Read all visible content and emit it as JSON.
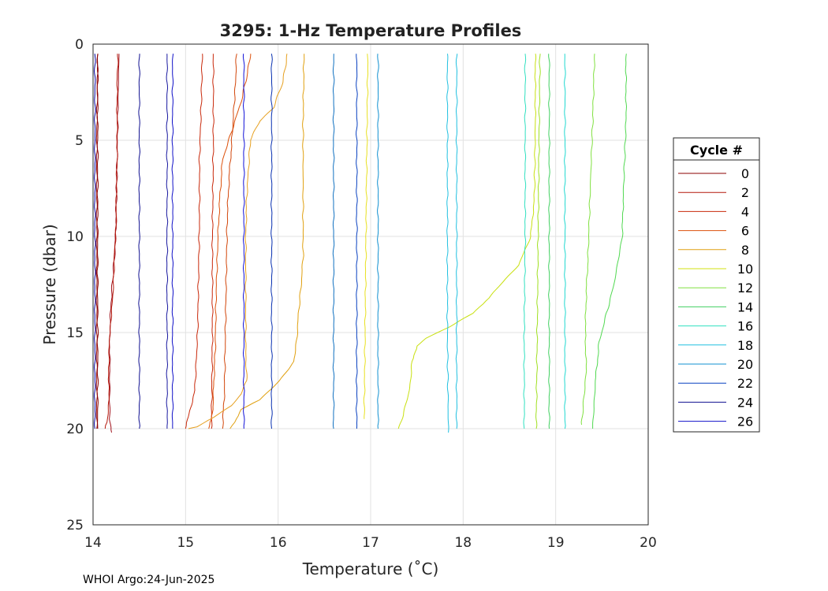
{
  "chart_data": {
    "type": "line",
    "title": "3295: 1-Hz Temperature Profiles",
    "xlabel": "Temperature (˚C)",
    "ylabel": "Pressure (dbar)",
    "xlim": [
      14,
      20
    ],
    "ylim": [
      0,
      25
    ],
    "y_reversed": true,
    "grid": true,
    "x_ticks": [
      "14",
      "15",
      "16",
      "17",
      "18",
      "19",
      "20"
    ],
    "y_ticks": [
      "0",
      "5",
      "10",
      "15",
      "20",
      "25"
    ],
    "legend": {
      "title": "Cycle #",
      "placement": "outside-right"
    },
    "footer": "WHOI Argo:24-Jun-2025",
    "series": [
      {
        "name": "0",
        "color": "#8b0000",
        "pressure": [
          0.5,
          5,
          10,
          15,
          20
        ],
        "temperature": [
          14.05,
          14.04,
          14.04,
          14.04,
          14.04
        ]
      },
      {
        "name": "0",
        "color": "#a0101a",
        "pressure": [
          0.5,
          3,
          6,
          8.5,
          10.5,
          13,
          15,
          17,
          19.5,
          20.2
        ],
        "temperature": [
          14.28,
          14.27,
          14.26,
          14.25,
          14.24,
          14.2,
          14.18,
          14.18,
          14.18,
          14.2
        ]
      },
      {
        "name": "0",
        "color": "#8b0000",
        "pressure": [
          0.5,
          10,
          20
        ],
        "temperature": [
          14.05,
          14.05,
          14.05
        ]
      },
      {
        "name": "2",
        "color": "#b4180c",
        "pressure": [
          0.5,
          2,
          4,
          6,
          8,
          9.5,
          11,
          12.5,
          14,
          15,
          16.5,
          18.5,
          19.5,
          20
        ],
        "temperature": [
          14.27,
          14.26,
          14.26,
          14.26,
          14.25,
          14.25,
          14.23,
          14.22,
          14.2,
          14.18,
          14.17,
          14.17,
          14.16,
          14.13
        ]
      },
      {
        "name": "4",
        "color": "#c8280a",
        "pressure": [
          0.5,
          3,
          6,
          9,
          12,
          15,
          18,
          20
        ],
        "temperature": [
          15.18,
          15.17,
          15.15,
          15.15,
          15.14,
          15.13,
          15.1,
          15.0
        ]
      },
      {
        "name": "4",
        "color": "#c8280a",
        "pressure": [
          0.5,
          5,
          10,
          15,
          20
        ],
        "temperature": [
          15.3,
          15.3,
          15.29,
          15.29,
          15.28
        ]
      },
      {
        "name": "6",
        "color": "#dc500a",
        "pressure": [
          0.5,
          1.5,
          3,
          4.5,
          6,
          8,
          10,
          13,
          16,
          18,
          19,
          19.5,
          20
        ],
        "temperature": [
          15.7,
          15.67,
          15.6,
          15.5,
          15.4,
          15.37,
          15.35,
          15.33,
          15.32,
          15.3,
          15.3,
          15.28,
          15.25
        ]
      },
      {
        "name": "6",
        "color": "#d2460a",
        "pressure": [
          0.5,
          2,
          3.5,
          5,
          7,
          9,
          12,
          15,
          18,
          20
        ],
        "temperature": [
          15.55,
          15.54,
          15.52,
          15.5,
          15.47,
          15.45,
          15.44,
          15.43,
          15.42,
          15.4
        ]
      },
      {
        "name": "8",
        "color": "#e6a020",
        "pressure": [
          0.5,
          2,
          3.3,
          4,
          5,
          6.5,
          8,
          10,
          13,
          16,
          17.5,
          18.2,
          18.8,
          19.4,
          19.9,
          20
        ],
        "temperature": [
          16.1,
          16.05,
          15.95,
          15.8,
          15.7,
          15.68,
          15.66,
          15.65,
          15.65,
          15.65,
          15.66,
          15.6,
          15.5,
          15.3,
          15.12,
          15.03
        ]
      },
      {
        "name": "8",
        "color": "#e0a010",
        "pressure": [
          0.5,
          4,
          8,
          11,
          12.5,
          14,
          15.5,
          16.5,
          17.5,
          18.5,
          19,
          19.5,
          20
        ],
        "temperature": [
          16.28,
          16.27,
          16.27,
          16.27,
          16.25,
          16.22,
          16.2,
          16.17,
          16.02,
          15.8,
          15.6,
          15.55,
          15.48
        ]
      },
      {
        "name": "10",
        "color": "#e8e020",
        "pressure": [
          0.5,
          5,
          10,
          15,
          19.5
        ],
        "temperature": [
          16.97,
          16.96,
          16.95,
          16.94,
          16.93
        ]
      },
      {
        "name": "10",
        "color": "#c8e010",
        "pressure": [
          0.5,
          4,
          8,
          10,
          11.5,
          12.5,
          13.2,
          14,
          14.7,
          15.3,
          15.7,
          16.5,
          18,
          19.3,
          20
        ],
        "temperature": [
          18.78,
          18.78,
          18.77,
          18.73,
          18.6,
          18.4,
          18.28,
          18.1,
          17.85,
          17.6,
          17.5,
          17.45,
          17.42,
          17.35,
          17.3
        ]
      },
      {
        "name": "12",
        "color": "#a0e020",
        "pressure": [
          0.5,
          5,
          10,
          15,
          20
        ],
        "temperature": [
          18.83,
          18.82,
          18.81,
          18.8,
          18.79
        ]
      },
      {
        "name": "12",
        "color": "#80e040",
        "pressure": [
          0.5,
          4,
          8,
          11,
          13,
          15,
          17,
          19.8
        ],
        "temperature": [
          19.42,
          19.4,
          19.37,
          19.35,
          19.33,
          19.32,
          19.33,
          19.28
        ]
      },
      {
        "name": "14",
        "color": "#50d850",
        "pressure": [
          0.5,
          4,
          8,
          10,
          12.5,
          14,
          15.5,
          17.5,
          20
        ],
        "temperature": [
          19.76,
          19.76,
          19.73,
          19.72,
          19.63,
          19.55,
          19.47,
          19.43,
          19.4
        ]
      },
      {
        "name": "14",
        "color": "#40d060",
        "pressure": [
          0.5,
          5,
          10,
          15,
          20
        ],
        "temperature": [
          18.93,
          18.93,
          18.93,
          18.93,
          18.93
        ]
      },
      {
        "name": "16",
        "color": "#30e0c0",
        "pressure": [
          0.5,
          5,
          10,
          15,
          20
        ],
        "temperature": [
          18.67,
          18.67,
          18.67,
          18.66,
          18.66
        ]
      },
      {
        "name": "16",
        "color": "#20d8d0",
        "pressure": [
          0.5,
          5,
          10,
          15,
          20
        ],
        "temperature": [
          19.1,
          19.1,
          19.1,
          19.1,
          19.1
        ]
      },
      {
        "name": "18",
        "color": "#20c0e0",
        "pressure": [
          0.5,
          5,
          10,
          15,
          20.2
        ],
        "temperature": [
          17.83,
          17.83,
          17.83,
          17.83,
          17.84
        ]
      },
      {
        "name": "18",
        "color": "#20c0e0",
        "pressure": [
          0.5,
          5,
          10,
          15,
          20
        ],
        "temperature": [
          17.93,
          17.93,
          17.93,
          17.93,
          17.93
        ]
      },
      {
        "name": "20",
        "color": "#1090d0",
        "pressure": [
          0.5,
          5,
          10,
          15,
          20
        ],
        "temperature": [
          17.08,
          17.08,
          17.08,
          17.08,
          17.08
        ]
      },
      {
        "name": "20",
        "color": "#1070c0",
        "pressure": [
          0.5,
          5,
          10,
          15,
          20
        ],
        "temperature": [
          16.6,
          16.6,
          16.6,
          16.6,
          16.6
        ]
      },
      {
        "name": "22",
        "color": "#0840c0",
        "pressure": [
          0.5,
          5,
          10,
          15,
          20
        ],
        "temperature": [
          16.85,
          16.85,
          16.85,
          16.85,
          16.85
        ]
      },
      {
        "name": "22",
        "color": "#0830b0",
        "pressure": [
          0.5,
          5,
          10,
          15,
          20
        ],
        "temperature": [
          15.93,
          15.93,
          15.93,
          15.93,
          15.93
        ]
      },
      {
        "name": "24",
        "color": "#101090",
        "pressure": [
          0.5,
          5,
          10,
          15,
          20
        ],
        "temperature": [
          14.5,
          14.5,
          14.5,
          14.5,
          14.5
        ]
      },
      {
        "name": "24",
        "color": "#1818a0",
        "pressure": [
          0.5,
          5,
          10,
          15,
          20
        ],
        "temperature": [
          14.8,
          14.8,
          14.8,
          14.8,
          14.8
        ]
      },
      {
        "name": "26",
        "color": "#1010c8",
        "pressure": [
          0.5,
          5,
          10,
          15,
          20
        ],
        "temperature": [
          14.86,
          14.86,
          14.86,
          14.86,
          14.86
        ]
      },
      {
        "name": "26",
        "color": "#1010d8",
        "pressure": [
          0.5,
          5,
          10,
          15,
          20
        ],
        "temperature": [
          15.63,
          15.63,
          15.63,
          15.63,
          15.63
        ]
      },
      {
        "name": "26",
        "color": "#0000a0",
        "pressure": [
          0.5,
          5,
          10,
          15,
          20
        ],
        "temperature": [
          14.02,
          14.02,
          14.02,
          14.02,
          14.02
        ]
      }
    ],
    "legend_items": [
      {
        "label": "0",
        "color": "#8b0000"
      },
      {
        "label": "2",
        "color": "#b4180c"
      },
      {
        "label": "4",
        "color": "#c8280a"
      },
      {
        "label": "6",
        "color": "#dc500a"
      },
      {
        "label": "8",
        "color": "#e0a010"
      },
      {
        "label": "10",
        "color": "#d0e010"
      },
      {
        "label": "12",
        "color": "#80e040"
      },
      {
        "label": "14",
        "color": "#40d060"
      },
      {
        "label": "16",
        "color": "#30e0c0"
      },
      {
        "label": "18",
        "color": "#20c0e0"
      },
      {
        "label": "20",
        "color": "#1090d0"
      },
      {
        "label": "22",
        "color": "#0840c0"
      },
      {
        "label": "24",
        "color": "#101090"
      },
      {
        "label": "26",
        "color": "#1010c8"
      }
    ]
  }
}
